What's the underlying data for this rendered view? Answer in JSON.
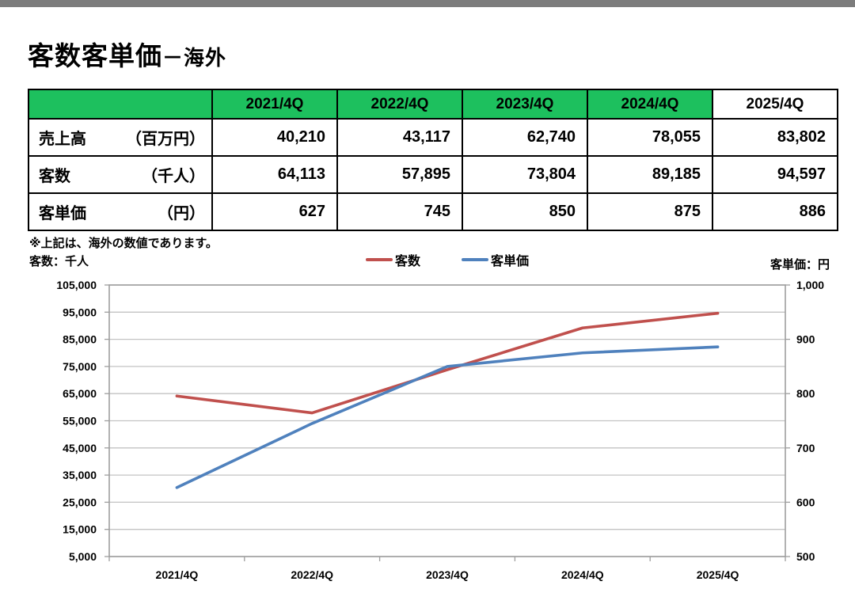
{
  "page": {
    "top_bar_color": "#7C7C7C"
  },
  "title": {
    "main": "客数客単価",
    "sub": "－海外"
  },
  "table": {
    "header_bg": "#1DC05E",
    "columns": [
      "",
      "2021/4Q",
      "2022/4Q",
      "2023/4Q",
      "2024/4Q",
      "2025/4Q"
    ],
    "rows": [
      {
        "label": "売上高",
        "unit": "（百万円）",
        "values": [
          "40,210",
          "43,117",
          "62,740",
          "78,055",
          "83,802"
        ]
      },
      {
        "label": "客数",
        "unit": "（千人）",
        "values": [
          "64,113",
          "57,895",
          "73,804",
          "89,185",
          "94,597"
        ]
      },
      {
        "label": "客単価",
        "unit": "（円）",
        "values": [
          "627",
          "745",
          "850",
          "875",
          "886"
        ]
      }
    ]
  },
  "note": "※上記は、海外の数値であります。",
  "chart_data": {
    "type": "line",
    "title": "",
    "categories": [
      "2021/4Q",
      "2022/4Q",
      "2023/4Q",
      "2024/4Q",
      "2025/4Q"
    ],
    "series": [
      {
        "name": "客数",
        "axis": "left",
        "color": "#C0504D",
        "values": [
          64113,
          57895,
          73804,
          89185,
          94597
        ]
      },
      {
        "name": "客単価",
        "axis": "right",
        "color": "#4F81BD",
        "values": [
          627,
          745,
          850,
          875,
          886
        ]
      }
    ],
    "left_axis": {
      "title": "客数：千人",
      "min": 5000,
      "max": 105000,
      "step": 10000,
      "tick_labels": [
        "105,000",
        "95,000",
        "85,000",
        "75,000",
        "65,000",
        "55,000",
        "45,000",
        "35,000",
        "25,000",
        "15,000",
        "5,000"
      ]
    },
    "right_axis": {
      "title": "客単価：円",
      "min": 500,
      "max": 1000,
      "step": 100,
      "tick_labels": [
        "1,000",
        "900",
        "800",
        "700",
        "600",
        "500"
      ]
    },
    "legend_position": "top-center",
    "grid": true,
    "grid_color": "#C3C3C3",
    "axis_color": "#9E9E9E"
  }
}
